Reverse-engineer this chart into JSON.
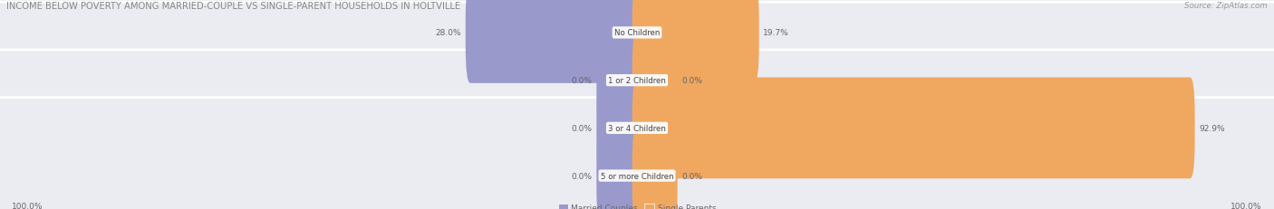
{
  "title": "INCOME BELOW POVERTY AMONG MARRIED-COUPLE VS SINGLE-PARENT HOUSEHOLDS IN HOLTVILLE",
  "source": "Source: ZipAtlas.com",
  "categories": [
    "No Children",
    "1 or 2 Children",
    "3 or 4 Children",
    "5 or more Children"
  ],
  "married_values": [
    28.0,
    0.0,
    0.0,
    0.0
  ],
  "single_values": [
    19.7,
    0.0,
    92.9,
    0.0
  ],
  "married_color": "#9999cc",
  "single_color": "#f0a860",
  "bg_color": "#e8e8f0",
  "row_bg_light": "#eeeef4",
  "row_bg_dark": "#e6e6ec",
  "title_color": "#888888",
  "label_color": "#666666",
  "source_color": "#999999",
  "max_val": 100.0,
  "left_axis_label": "100.0%",
  "right_axis_label": "100.0%",
  "stub_size": 6.0,
  "figsize": [
    14.06,
    2.32
  ],
  "dpi": 100
}
